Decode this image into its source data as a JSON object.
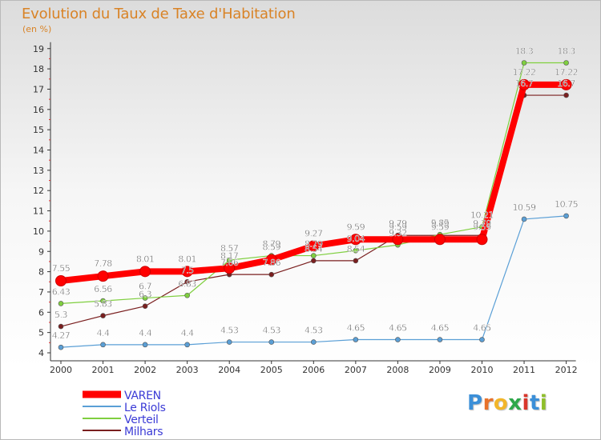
{
  "title": "Evolution du Taux de Taxe d'Habitation",
  "unit": "(en %)",
  "logo": {
    "letters": [
      "P",
      "r",
      "o",
      "x",
      "i",
      "t",
      "i"
    ],
    "colors": [
      "#3b8fd8",
      "#e8722a",
      "#f2b62a",
      "#2da84a",
      "#d9362b",
      "#3b8fd8",
      "#8fbf2a"
    ]
  },
  "chart_data": {
    "type": "line",
    "title": "Evolution du Taux de Taxe d'Habitation",
    "ylabel": "(en %)",
    "xlabel": "",
    "x": [
      "2000",
      "2001",
      "2002",
      "2003",
      "2004",
      "2005",
      "2006",
      "2007",
      "2008",
      "2009",
      "2010",
      "2011",
      "2012"
    ],
    "ylim": [
      4,
      19
    ],
    "yticks": [
      "4",
      "5",
      "6",
      "7",
      "8",
      "9",
      "10",
      "11",
      "12",
      "13",
      "14",
      "15",
      "16",
      "17",
      "18",
      "19"
    ],
    "grid": false,
    "legend_position": "bottom-left",
    "series": [
      {
        "name": "VAREN",
        "color": "#ff0000",
        "values": [
          7.55,
          7.78,
          8.01,
          8.01,
          8.17,
          8.59,
          9.27,
          9.59,
          9.59,
          9.59,
          9.59,
          17.22,
          17.22
        ],
        "labels": [
          "7.55",
          "7.78",
          "8.01",
          "8.01",
          "8.17",
          "8.59",
          "9.27",
          "9.59",
          "9.59",
          "9.59",
          "9.59",
          "17.22",
          "17.22"
        ]
      },
      {
        "name": "Le Riols",
        "color": "#5a9fd6",
        "values": [
          4.27,
          4.4,
          4.4,
          4.4,
          4.53,
          4.53,
          4.53,
          4.65,
          4.65,
          4.65,
          4.65,
          10.59,
          10.75
        ],
        "labels": [
          "4.27",
          "4.4",
          "4.4",
          "4.4",
          "4.53",
          "4.53",
          "4.53",
          "4.65",
          "4.65",
          "4.65",
          "4.65",
          "10.59",
          "10.75"
        ]
      },
      {
        "name": "Verteil",
        "color": "#7fcf3f",
        "values": [
          6.43,
          6.56,
          6.7,
          6.83,
          8.57,
          8.79,
          8.79,
          9.04,
          9.32,
          9.83,
          10.21,
          18.3,
          18.3
        ],
        "labels": [
          "6.43",
          "6.56",
          "6.7",
          "6.83",
          "8.57",
          "8.79",
          "8.79",
          "9.04",
          "9.32",
          "9.83",
          "10.21",
          "18.3",
          "18.3"
        ]
      },
      {
        "name": "Milhars",
        "color": "#7a1f1f",
        "values": [
          5.3,
          5.83,
          6.3,
          7.5,
          7.86,
          7.86,
          8.54,
          8.54,
          9.79,
          9.79,
          9.79,
          16.7,
          16.7
        ],
        "labels": [
          "5.3",
          "5.83",
          "6.3",
          "7.5",
          "7.86",
          "7.86",
          "8.54",
          "8.54",
          "9.79",
          "9.79",
          "9.79",
          "16.7",
          "16.7"
        ]
      }
    ]
  }
}
